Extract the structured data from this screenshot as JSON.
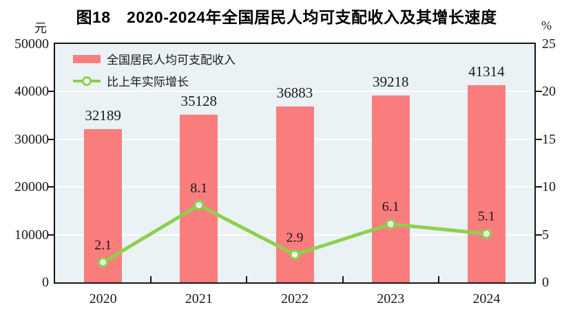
{
  "title": "图18　2020-2024年全国居民人均可支配收入及其增长速度",
  "left_axis": {
    "unit": "元",
    "ticks": [
      "50000",
      "40000",
      "30000",
      "20000",
      "10000",
      "0"
    ]
  },
  "right_axis": {
    "unit": "%",
    "ticks": [
      "25",
      "20",
      "15",
      "10",
      "5",
      "0"
    ]
  },
  "chart_data": {
    "type": "bar",
    "subtype": "bar+line combo, dual axis",
    "categories": [
      "2020",
      "2021",
      "2022",
      "2023",
      "2024"
    ],
    "series": [
      {
        "name": "全国居民人均可支配收入",
        "type": "bar",
        "axis": "left",
        "unit": "元",
        "values": [
          32189,
          35128,
          36883,
          39218,
          41314
        ],
        "color": "#fa7d7d"
      },
      {
        "name": "比上年实际增长",
        "type": "line",
        "axis": "right",
        "unit": "%",
        "values": [
          2.1,
          8.1,
          2.9,
          6.1,
          5.1
        ],
        "color": "#8ecf4d",
        "marker": "circle-white-fill"
      }
    ],
    "title": "图18　2020-2024年全国居民人均可支配收入及其增长速度",
    "xlabel": "",
    "ylabel_left": "元",
    "ylabel_right": "%",
    "left_ylim": [
      0,
      50000
    ],
    "right_ylim": [
      0,
      25
    ],
    "grid": true,
    "legend_position": "top-left-inside"
  },
  "colors": {
    "bar": "#fa7d7d",
    "line": "#8ecf4d",
    "marker_fill": "#ffffff",
    "plot_background": "#eaf2f6",
    "gridline": "#ffffff",
    "axis": "#151515",
    "text": "#1a1a1a",
    "title": "#000000"
  }
}
